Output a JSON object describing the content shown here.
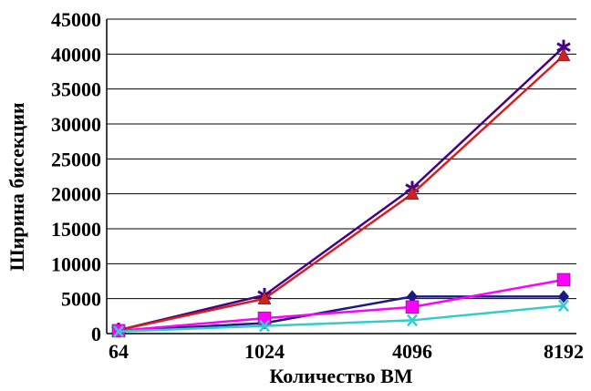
{
  "chart_data": {
    "type": "line",
    "title": "",
    "xlabel": "Количество ВМ",
    "ylabel": "Ширина бисекции",
    "categories": [
      "64",
      "1024",
      "4096",
      "8192"
    ],
    "ylim": [
      0,
      45000
    ],
    "yticks": [
      "0",
      "5000",
      "10000",
      "15000",
      "20000",
      "25000",
      "30000",
      "35000",
      "40000",
      "45000"
    ],
    "grid": true,
    "legend": "none",
    "series": [
      {
        "color": "#4B0082",
        "marker": "star",
        "values": [
          500,
          5500,
          20800,
          41000
        ]
      },
      {
        "color": "#D41F1F",
        "marker": "triangle",
        "values": [
          500,
          5000,
          20000,
          39800
        ]
      },
      {
        "color": "#1A1A80",
        "marker": "diamond",
        "values": [
          400,
          1500,
          5300,
          5300
        ]
      },
      {
        "color": "#FF00FF",
        "marker": "square",
        "values": [
          400,
          2200,
          3800,
          7700
        ]
      },
      {
        "color": "#33CCCC",
        "marker": "x",
        "values": [
          300,
          1100,
          1900,
          4000
        ]
      }
    ]
  }
}
